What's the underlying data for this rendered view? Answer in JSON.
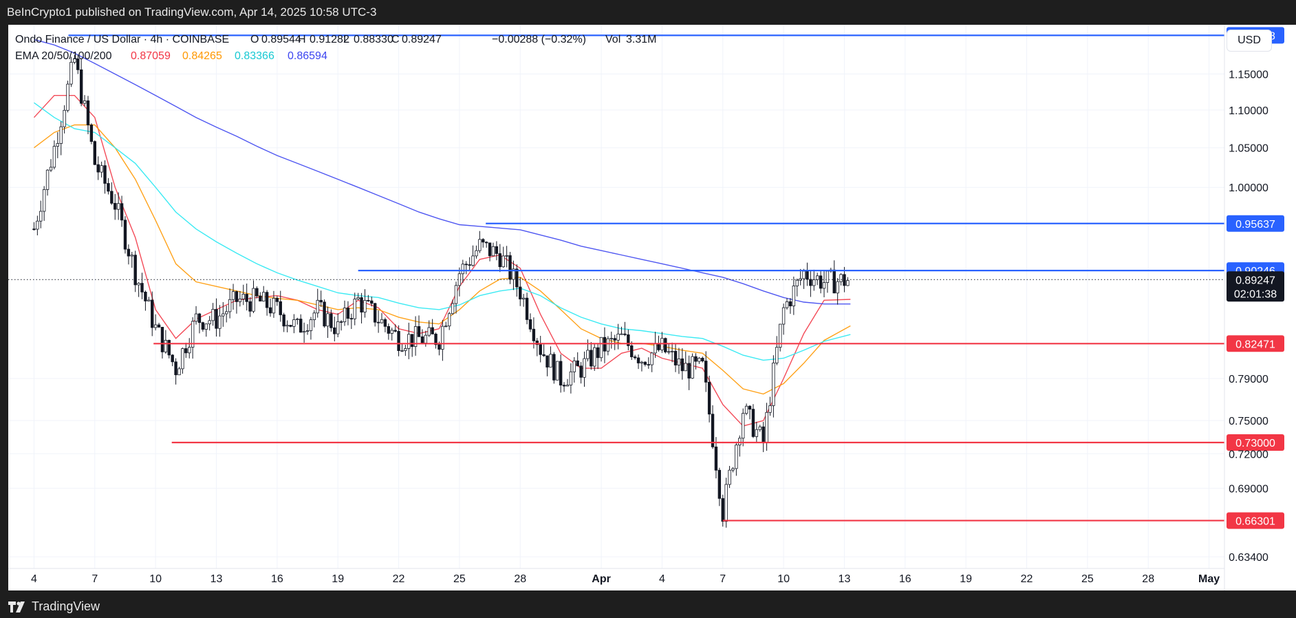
{
  "header": {
    "publisher_line": "BeInCrypto1 published on TradingView.com, Apr 14, 2025 10:58 UTC-3"
  },
  "footer": {
    "brand": "TradingView"
  },
  "controls": {
    "currency": "USD"
  },
  "legend": {
    "symbol": "Ondo Finance / US Dollar · 4h · COINBASE",
    "open_label": "O",
    "open": "0.89544",
    "high_label": "H",
    "high": "0.91282",
    "low_label": "L",
    "low": "0.88330",
    "close_label": "C",
    "close": "0.89247",
    "change": "−0.00288 (−0.32%)",
    "volume_label": "Vol",
    "volume": "3.31M",
    "ema_label": "EMA 20/50/100/200",
    "ema20": "0.87059",
    "ema50": "0.84265",
    "ema100": "0.83366",
    "ema200": "0.86594"
  },
  "colors": {
    "ema20": "#f23645",
    "ema50": "#ff9800",
    "ema100": "#26e8f2",
    "ema200": "#3b44f0",
    "resistance": "#2962ff",
    "support": "#f23645",
    "candle": "#131722"
  },
  "chart_data": {
    "type": "candlestick",
    "title": "Ondo Finance / US Dollar · 4h · COINBASE",
    "x_tick_labels": [
      "4",
      "7",
      "10",
      "13",
      "16",
      "19",
      "22",
      "25",
      "28",
      "Apr",
      "4",
      "7",
      "10",
      "13",
      "16",
      "19",
      "22",
      "25",
      "28",
      "May"
    ],
    "y_tick_labels": [
      "1.15000",
      "1.10000",
      "1.05000",
      "1.00000",
      "0.79000",
      "0.75000",
      "0.72000",
      "0.69000",
      "0.63400"
    ],
    "ylim": [
      0.625,
      1.222
    ],
    "scale": "log",
    "grid": true,
    "horizontal_levels": [
      {
        "label": "1.20618",
        "value": 1.20618,
        "kind": "resistance",
        "start_day": 5.7
      },
      {
        "label": "0.95637",
        "value": 0.95637,
        "kind": "resistance",
        "start_day": 26.3
      },
      {
        "label": "0.90246",
        "value": 0.90246,
        "kind": "resistance",
        "start_day": 20.0
      },
      {
        "label": "0.82471",
        "value": 0.82471,
        "kind": "support",
        "start_day": 9.9
      },
      {
        "label": "0.73000",
        "value": 0.73,
        "kind": "support",
        "start_day": 10.8
      },
      {
        "label": "0.66301",
        "value": 0.66301,
        "kind": "support",
        "start_day": 38.0
      }
    ],
    "last_price": {
      "value": 0.89247,
      "label": "0.89247",
      "countdown": "02:01:38"
    },
    "series": [
      {
        "name": "EMA 20",
        "x": [
          4,
          5,
          6,
          7,
          8,
          9,
          10,
          11,
          12,
          13,
          14,
          15,
          16,
          17,
          18,
          19,
          20,
          21,
          22,
          23,
          24,
          25,
          26,
          27,
          28,
          29,
          30,
          31,
          32,
          33,
          34,
          35,
          36,
          37,
          38,
          39,
          40,
          41,
          42,
          43,
          44.3
        ],
        "values": [
          1.09,
          1.12,
          1.12,
          1.09,
          1.0,
          0.94,
          0.86,
          0.83,
          0.85,
          0.86,
          0.87,
          0.873,
          0.875,
          0.87,
          0.86,
          0.855,
          0.87,
          0.862,
          0.84,
          0.835,
          0.84,
          0.885,
          0.915,
          0.92,
          0.905,
          0.855,
          0.815,
          0.8,
          0.8,
          0.815,
          0.82,
          0.81,
          0.805,
          0.8,
          0.765,
          0.745,
          0.75,
          0.79,
          0.835,
          0.87,
          0.871
        ]
      },
      {
        "name": "EMA 50",
        "x": [
          4,
          5,
          6,
          7,
          8,
          9,
          10,
          11,
          12,
          13,
          14,
          15,
          16,
          17,
          18,
          19,
          20,
          21,
          22,
          23,
          24,
          25,
          26,
          27,
          28,
          29,
          30,
          31,
          32,
          33,
          34,
          35,
          36,
          37,
          38,
          39,
          40,
          41,
          42,
          43,
          44.3
        ],
        "values": [
          1.05,
          1.07,
          1.08,
          1.08,
          1.05,
          1.01,
          0.96,
          0.91,
          0.89,
          0.885,
          0.88,
          0.875,
          0.872,
          0.87,
          0.865,
          0.86,
          0.862,
          0.86,
          0.852,
          0.847,
          0.845,
          0.86,
          0.88,
          0.893,
          0.895,
          0.88,
          0.86,
          0.84,
          0.83,
          0.825,
          0.825,
          0.822,
          0.818,
          0.815,
          0.798,
          0.78,
          0.775,
          0.785,
          0.805,
          0.828,
          0.843
        ]
      },
      {
        "name": "EMA 100",
        "x": [
          4,
          5,
          6,
          7,
          8,
          9,
          10,
          11,
          12,
          13,
          14,
          15,
          16,
          17,
          18,
          19,
          20,
          21,
          22,
          23,
          24,
          25,
          26,
          27,
          28,
          29,
          30,
          31,
          32,
          33,
          34,
          35,
          36,
          37,
          38,
          39,
          40,
          41,
          42,
          43,
          44.3
        ],
        "values": [
          1.11,
          1.09,
          1.075,
          1.07,
          1.05,
          1.03,
          1.0,
          0.97,
          0.95,
          0.935,
          0.922,
          0.91,
          0.9,
          0.892,
          0.885,
          0.878,
          0.875,
          0.873,
          0.867,
          0.862,
          0.86,
          0.865,
          0.875,
          0.88,
          0.883,
          0.875,
          0.862,
          0.852,
          0.845,
          0.84,
          0.838,
          0.835,
          0.832,
          0.83,
          0.822,
          0.813,
          0.808,
          0.81,
          0.818,
          0.827,
          0.834
        ]
      },
      {
        "name": "EMA 200",
        "x": [
          4,
          5,
          6,
          7,
          8,
          9,
          10,
          11,
          12,
          13,
          14,
          15,
          16,
          17,
          18,
          19,
          20,
          21,
          22,
          23,
          24,
          25,
          26,
          27,
          28,
          29,
          30,
          31,
          32,
          33,
          34,
          35,
          36,
          37,
          38,
          39,
          40,
          41,
          42,
          43,
          44.3
        ],
        "values": [
          1.2,
          1.192,
          1.18,
          1.165,
          1.15,
          1.135,
          1.12,
          1.105,
          1.09,
          1.077,
          1.065,
          1.052,
          1.04,
          1.03,
          1.02,
          1.01,
          1.0,
          0.99,
          0.98,
          0.97,
          0.962,
          0.955,
          0.953,
          0.951,
          0.949,
          0.943,
          0.937,
          0.93,
          0.925,
          0.92,
          0.915,
          0.91,
          0.905,
          0.9,
          0.895,
          0.888,
          0.88,
          0.873,
          0.868,
          0.866,
          0.866
        ]
      },
      {
        "name": "OHLC",
        "x": [
          4,
          5,
          6,
          7,
          8,
          9,
          10,
          11,
          12,
          13,
          14,
          15,
          16,
          17,
          18,
          19,
          20,
          21,
          22,
          23,
          24,
          25,
          26,
          27,
          28,
          29,
          30,
          31,
          32,
          33,
          34,
          35,
          36,
          37,
          38,
          39,
          40,
          41,
          42,
          43,
          44.3
        ],
        "values": [
          0.95,
          1.05,
          1.17,
          1.03,
          0.98,
          0.9,
          0.84,
          0.8,
          0.85,
          0.85,
          0.87,
          0.87,
          0.86,
          0.84,
          0.86,
          0.84,
          0.87,
          0.85,
          0.83,
          0.83,
          0.83,
          0.9,
          0.93,
          0.92,
          0.88,
          0.82,
          0.79,
          0.8,
          0.82,
          0.83,
          0.81,
          0.82,
          0.8,
          0.8,
          0.67,
          0.76,
          0.73,
          0.86,
          0.9,
          0.89,
          0.892
        ]
      }
    ]
  }
}
